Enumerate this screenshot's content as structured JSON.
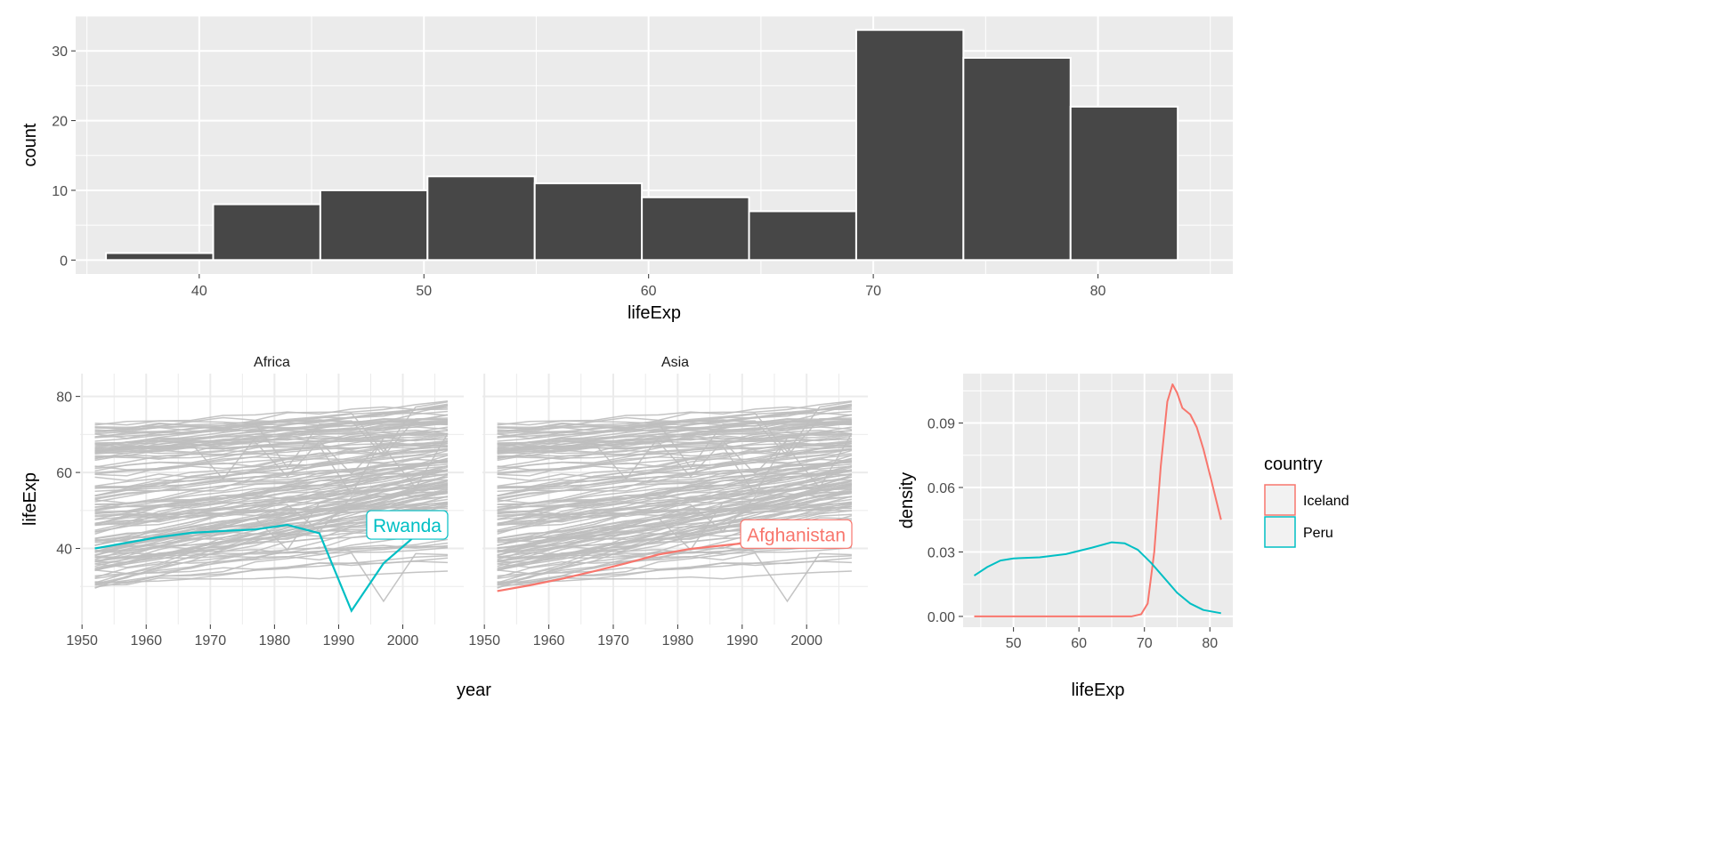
{
  "chart_data": [
    {
      "type": "bar",
      "title": "",
      "xlabel": "lifeExp",
      "ylabel": "count",
      "bin_edges": [
        35.85,
        40.62,
        45.39,
        50.16,
        54.93,
        59.7,
        64.47,
        69.24,
        74.01,
        78.78,
        83.55
      ],
      "values": [
        1,
        8,
        10,
        12,
        11,
        9,
        7,
        33,
        29,
        22
      ],
      "xticks": [
        40,
        50,
        60,
        70,
        80
      ],
      "yticks": [
        0,
        10,
        20,
        30
      ],
      "xlim": [
        34.5,
        86
      ],
      "ylim": [
        -2,
        35
      ]
    },
    {
      "type": "line",
      "facets": [
        "Africa",
        "Asia"
      ],
      "xlabel": "year",
      "ylabel": "lifeExp",
      "xticks": [
        1950,
        1960,
        1970,
        1980,
        1990,
        2000
      ],
      "yticks": [
        40,
        60,
        80
      ],
      "xlim": [
        1949.7,
        2009.5
      ],
      "ylim": [
        20,
        86
      ],
      "x": [
        1952,
        1957,
        1962,
        1967,
        1972,
        1977,
        1982,
        1987,
        1992,
        1997,
        2002,
        2007
      ],
      "background_series_color": "#BEBEBE",
      "background_series_count": 140,
      "highlight": [
        {
          "facet": "Africa",
          "name": "Rwanda",
          "color": "#00BFC4",
          "values": [
            40.0,
            41.5,
            43.0,
            44.1,
            44.6,
            45.0,
            46.2,
            44.0,
            23.6,
            36.1,
            43.4,
            46.2
          ]
        },
        {
          "facet": "Asia",
          "name": "Afghanistan",
          "color": "#F8766D",
          "values": [
            28.8,
            30.3,
            32.0,
            34.0,
            36.1,
            38.4,
            39.9,
            40.8,
            41.7,
            41.8,
            42.1,
            43.8
          ]
        }
      ]
    },
    {
      "type": "line",
      "subtype": "density",
      "xlabel": "lifeExp",
      "ylabel": "density",
      "xticks": [
        50,
        60,
        70,
        80
      ],
      "yticks": [
        "0.00",
        "0.03",
        "0.06",
        "0.09"
      ],
      "xlim": [
        42.3,
        83.5
      ],
      "ylim": [
        -0.005,
        0.113
      ],
      "legend": {
        "title": "country",
        "position": "right"
      },
      "series": [
        {
          "name": "Iceland",
          "color": "#F8766D",
          "x": [
            44,
            60,
            68,
            69.5,
            70.5,
            71.5,
            72.5,
            73.5,
            74.3,
            75,
            75.8,
            77,
            78,
            79,
            80,
            81.7
          ],
          "y": [
            0,
            0,
            0,
            0.001,
            0.006,
            0.03,
            0.07,
            0.1,
            0.108,
            0.104,
            0.097,
            0.094,
            0.088,
            0.078,
            0.066,
            0.045
          ]
        },
        {
          "name": "Peru",
          "color": "#00BFC4",
          "x": [
            44,
            46,
            48,
            50,
            54,
            58,
            62,
            65,
            67,
            69,
            71,
            73,
            75,
            77,
            79,
            81.7
          ],
          "y": [
            0.019,
            0.023,
            0.026,
            0.027,
            0.0275,
            0.029,
            0.032,
            0.0345,
            0.034,
            0.031,
            0.025,
            0.018,
            0.011,
            0.006,
            0.003,
            0.0015
          ]
        }
      ]
    }
  ]
}
